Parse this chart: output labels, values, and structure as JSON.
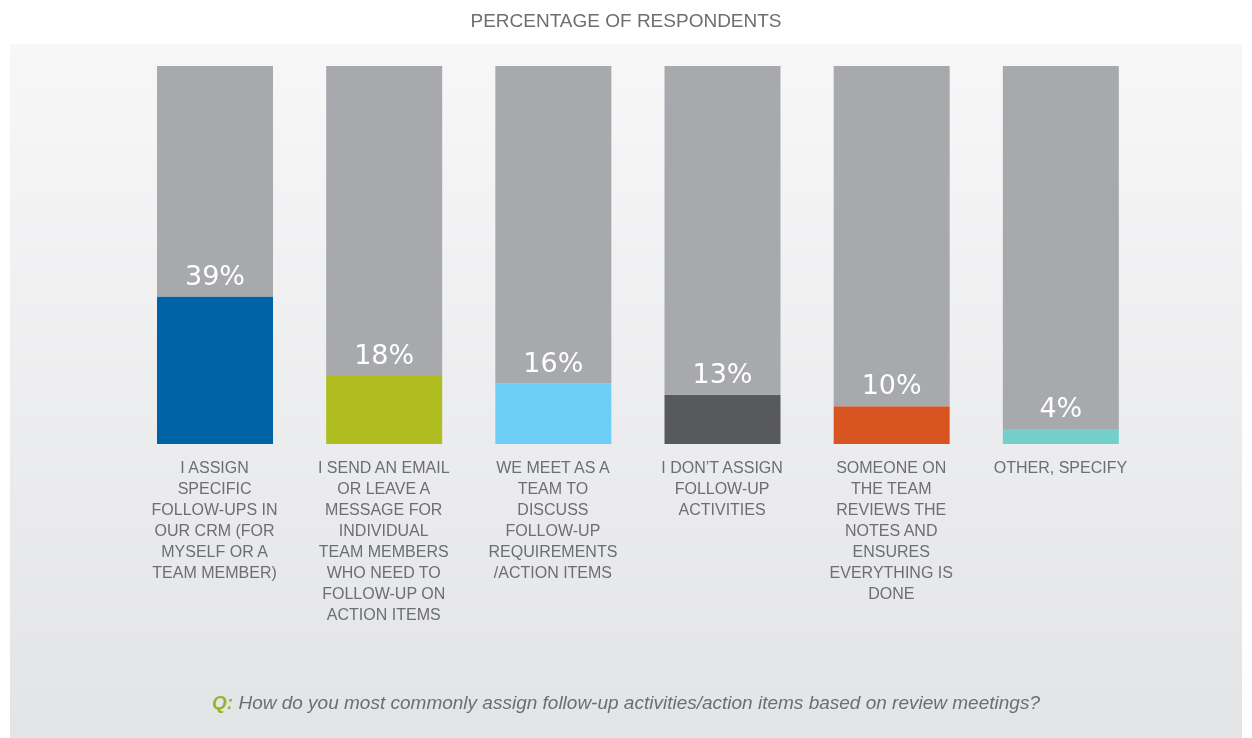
{
  "chart_data": {
    "type": "bar",
    "title": "PERCENTAGE OF RESPONDENTS",
    "categories": [
      "I ASSIGN SPECIFIC FOLLOW-UPS IN OUR CRM (FOR MYSELF OR A TEAM MEMBER)",
      "I SEND AN EMAIL OR LEAVE A MESSAGE FOR INDIVIDUAL TEAM MEMBERS WHO NEED TO FOLLOW-UP ON ACTION ITEMS",
      "WE MEET AS A TEAM TO DISCUSS FOLLOW-UP REQUIREMENTS /ACTION ITEMS",
      "I DON’T ASSIGN FOLLOW-UP ACTIVITIES",
      "SOMEONE ON THE TEAM REVIEWS THE NOTES AND ENSURES EVERYTHING IS DONE",
      "OTHER, SPECIFY"
    ],
    "stacked": true,
    "series": [
      {
        "colors": [
          "#0063a6",
          "#afbd21",
          "#6dcff6",
          "#58595b",
          "#d85521",
          "#73cfc9"
        ],
        "values": [
          39,
          18,
          16,
          13,
          10,
          4
        ],
        "value_labels": [
          "39%",
          "18%",
          "16%",
          "13%",
          "10%",
          "4%"
        ]
      },
      {
        "color": "#a7a9ac",
        "values": [
          61,
          82,
          84,
          87,
          90,
          96
        ]
      }
    ],
    "ylim": [
      0,
      100
    ],
    "tick_labels": "x",
    "annotations": [
      "Q: How do you most commonly assign follow-up activities/action items based on review meetings?"
    ]
  }
}
